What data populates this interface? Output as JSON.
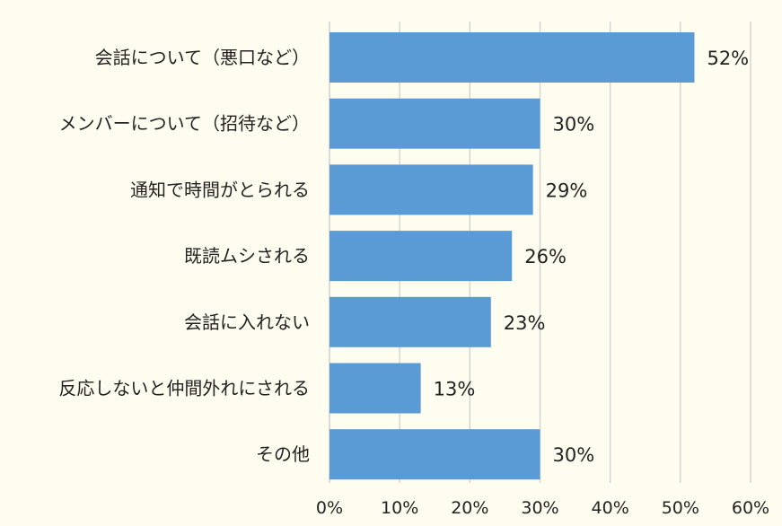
{
  "chart_data": {
    "type": "bar",
    "orientation": "horizontal",
    "categories": [
      "会話について（悪口など）",
      "メンバーについて（招待など）",
      "通知で時間がとられる",
      "既読ムシされる",
      "会話に入れない",
      "反応しないと仲間外れにされる",
      "その他"
    ],
    "values": [
      52,
      30,
      29,
      26,
      23,
      13,
      30
    ],
    "value_labels": [
      "52%",
      "30%",
      "29%",
      "26%",
      "23%",
      "13%",
      "30%"
    ],
    "xlim": [
      0,
      60
    ],
    "x_ticks": [
      0,
      10,
      20,
      30,
      40,
      50,
      60
    ],
    "x_tick_labels": [
      "0%",
      "10%",
      "20%",
      "30%",
      "40%",
      "50%",
      "60%"
    ],
    "title": "",
    "xlabel": "",
    "ylabel": "",
    "grid": "vertical",
    "legend": "none"
  },
  "colors": {
    "background": "#fffdf0",
    "bar": "#5b9bd5",
    "gridline": "#d0d0d0",
    "text": "#222222"
  }
}
